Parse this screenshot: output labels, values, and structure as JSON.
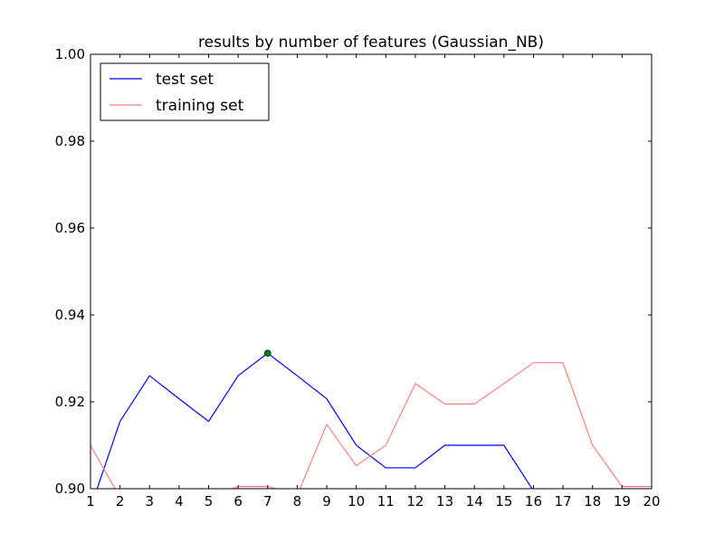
{
  "chart_data": {
    "type": "line",
    "title": "results by number of features (Gaussian_NB)",
    "xlabel": "",
    "ylabel": "",
    "xlim": [
      1,
      20
    ],
    "ylim": [
      0.9,
      1.0
    ],
    "x_ticks": [
      1,
      2,
      3,
      4,
      5,
      6,
      7,
      8,
      9,
      10,
      11,
      12,
      13,
      14,
      15,
      16,
      17,
      18,
      19,
      20
    ],
    "y_ticks": [
      "0.90",
      "0.92",
      "0.94",
      "0.96",
      "0.98",
      "1.00"
    ],
    "grid": false,
    "legend_position": "top-left",
    "series": [
      {
        "name": "test set",
        "color": "#0000ff",
        "x": [
          1,
          2,
          3,
          4,
          5,
          6,
          7,
          8,
          9,
          10,
          11,
          12,
          13,
          14,
          15,
          16
        ],
        "values": [
          0.8955,
          0.9155,
          0.926,
          0.9207,
          0.9155,
          0.926,
          0.9312,
          0.926,
          0.9207,
          0.91,
          0.9048,
          0.9048,
          0.91,
          0.91,
          0.91,
          0.8995
        ]
      },
      {
        "name": "training set",
        "color": "#ff7f7f",
        "x": [
          1,
          2,
          3,
          4,
          5,
          6,
          7,
          8,
          9,
          10,
          11,
          12,
          13,
          14,
          15,
          16,
          17,
          18,
          19,
          20
        ],
        "values": [
          0.91,
          0.898,
          0.898,
          0.898,
          0.898,
          0.9005,
          0.9005,
          0.8985,
          0.9148,
          0.9053,
          0.91,
          0.9242,
          0.9195,
          0.9195,
          0.9242,
          0.929,
          0.929,
          0.91,
          0.9005,
          0.9005
        ]
      }
    ],
    "highlight_point": {
      "x": 7,
      "y": 0.9312,
      "color": "#008000"
    }
  }
}
